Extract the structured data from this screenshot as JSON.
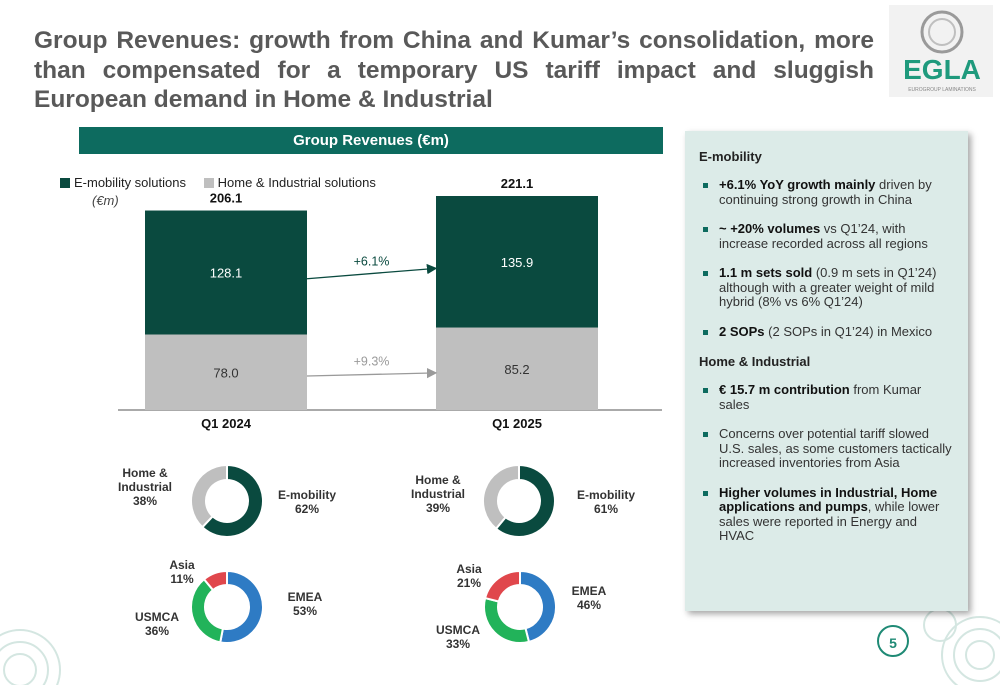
{
  "title": "Group Revenues: growth from China and Kumar’s consolidation, more than compensated for a temporary US tariff impact and sluggish European demand in Home & Industrial",
  "logo": {
    "text": "EGLA",
    "subtext": "EUROGROUP LAMINATIONS"
  },
  "colors": {
    "dark_green": "#0a4a3f",
    "grey": "#bfbfbf",
    "header_green": "#0d6b5f",
    "blue": "#2e7bc4",
    "green": "#22b35a",
    "red": "#e0474c"
  },
  "chart_data": [
    {
      "type": "bar",
      "title": "Group Revenues (€m)",
      "unit_label": "(€m)",
      "categories": [
        "Q1 2024",
        "Q1 2025"
      ],
      "series": [
        {
          "name": "E-mobility solutions",
          "values": [
            128.1,
            135.9
          ],
          "color": "#0a4a3f"
        },
        {
          "name": "Home & Industrial solutions",
          "values": [
            78.0,
            85.2
          ],
          "color": "#bfbfbf"
        }
      ],
      "totals": [
        "206.1",
        "221.1"
      ],
      "value_labels": [
        [
          "128.1",
          "135.9"
        ],
        [
          "78.0",
          "85.2"
        ]
      ],
      "growth_annotations": [
        "+6.1%",
        "+9.3%"
      ],
      "ylim": [
        0,
        221.1
      ]
    },
    {
      "type": "pie",
      "period": "Q1 2024",
      "slices": [
        {
          "label": "E-mobility",
          "pct_label": "62%",
          "value": 62,
          "color": "#0a4a3f"
        },
        {
          "label": "Home & Industrial",
          "pct_label": "38%",
          "value": 38,
          "color": "#bfbfbf"
        }
      ]
    },
    {
      "type": "pie",
      "period": "Q1 2025",
      "slices": [
        {
          "label": "E-mobility",
          "pct_label": "61%",
          "value": 61,
          "color": "#0a4a3f"
        },
        {
          "label": "Home & Industrial",
          "pct_label": "39%",
          "value": 39,
          "color": "#bfbfbf"
        }
      ]
    },
    {
      "type": "pie",
      "period": "Q1 2024",
      "slices": [
        {
          "label": "EMEA",
          "pct_label": "53%",
          "value": 53,
          "color": "#2e7bc4"
        },
        {
          "label": "USMCA",
          "pct_label": "36%",
          "value": 36,
          "color": "#22b35a"
        },
        {
          "label": "Asia",
          "pct_label": "11%",
          "value": 11,
          "color": "#e0474c"
        }
      ]
    },
    {
      "type": "pie",
      "period": "Q1 2025",
      "slices": [
        {
          "label": "EMEA",
          "pct_label": "46%",
          "value": 46,
          "color": "#2e7bc4"
        },
        {
          "label": "USMCA",
          "pct_label": "33%",
          "value": 33,
          "color": "#22b35a"
        },
        {
          "label": "Asia",
          "pct_label": "21%",
          "value": 21,
          "color": "#e0474c"
        }
      ]
    }
  ],
  "side_panel": {
    "emobility_heading": "E-mobility",
    "emobility_bullets": [
      {
        "bold": "+6.1% YoY growth mainly",
        "text": " driven by continuing strong growth in China"
      },
      {
        "bold": "~ +20% volumes",
        "text": " vs Q1’24, with increase recorded across all regions"
      },
      {
        "bold": "1.1 m sets sold",
        "text": " (0.9 m sets in Q1’24) although with a greater weight of mild hybrid (8% vs 6% Q1’24)"
      },
      {
        "bold": "2 SOPs",
        "text": " (2 SOPs in Q1’24) in Mexico"
      }
    ],
    "hi_heading": "Home & Industrial",
    "hi_bullets": [
      {
        "bold": "€ 15.7 m contribution",
        "text": " from Kumar sales"
      },
      {
        "bold": "",
        "text": "Concerns over potential tariff slowed U.S. sales, as some customers tactically increased inventories from Asia"
      },
      {
        "bold": "Higher volumes in Industrial, Home applications and pumps",
        "text": ", while lower sales were reported in Energy and HVAC"
      }
    ]
  },
  "page_number": "5"
}
